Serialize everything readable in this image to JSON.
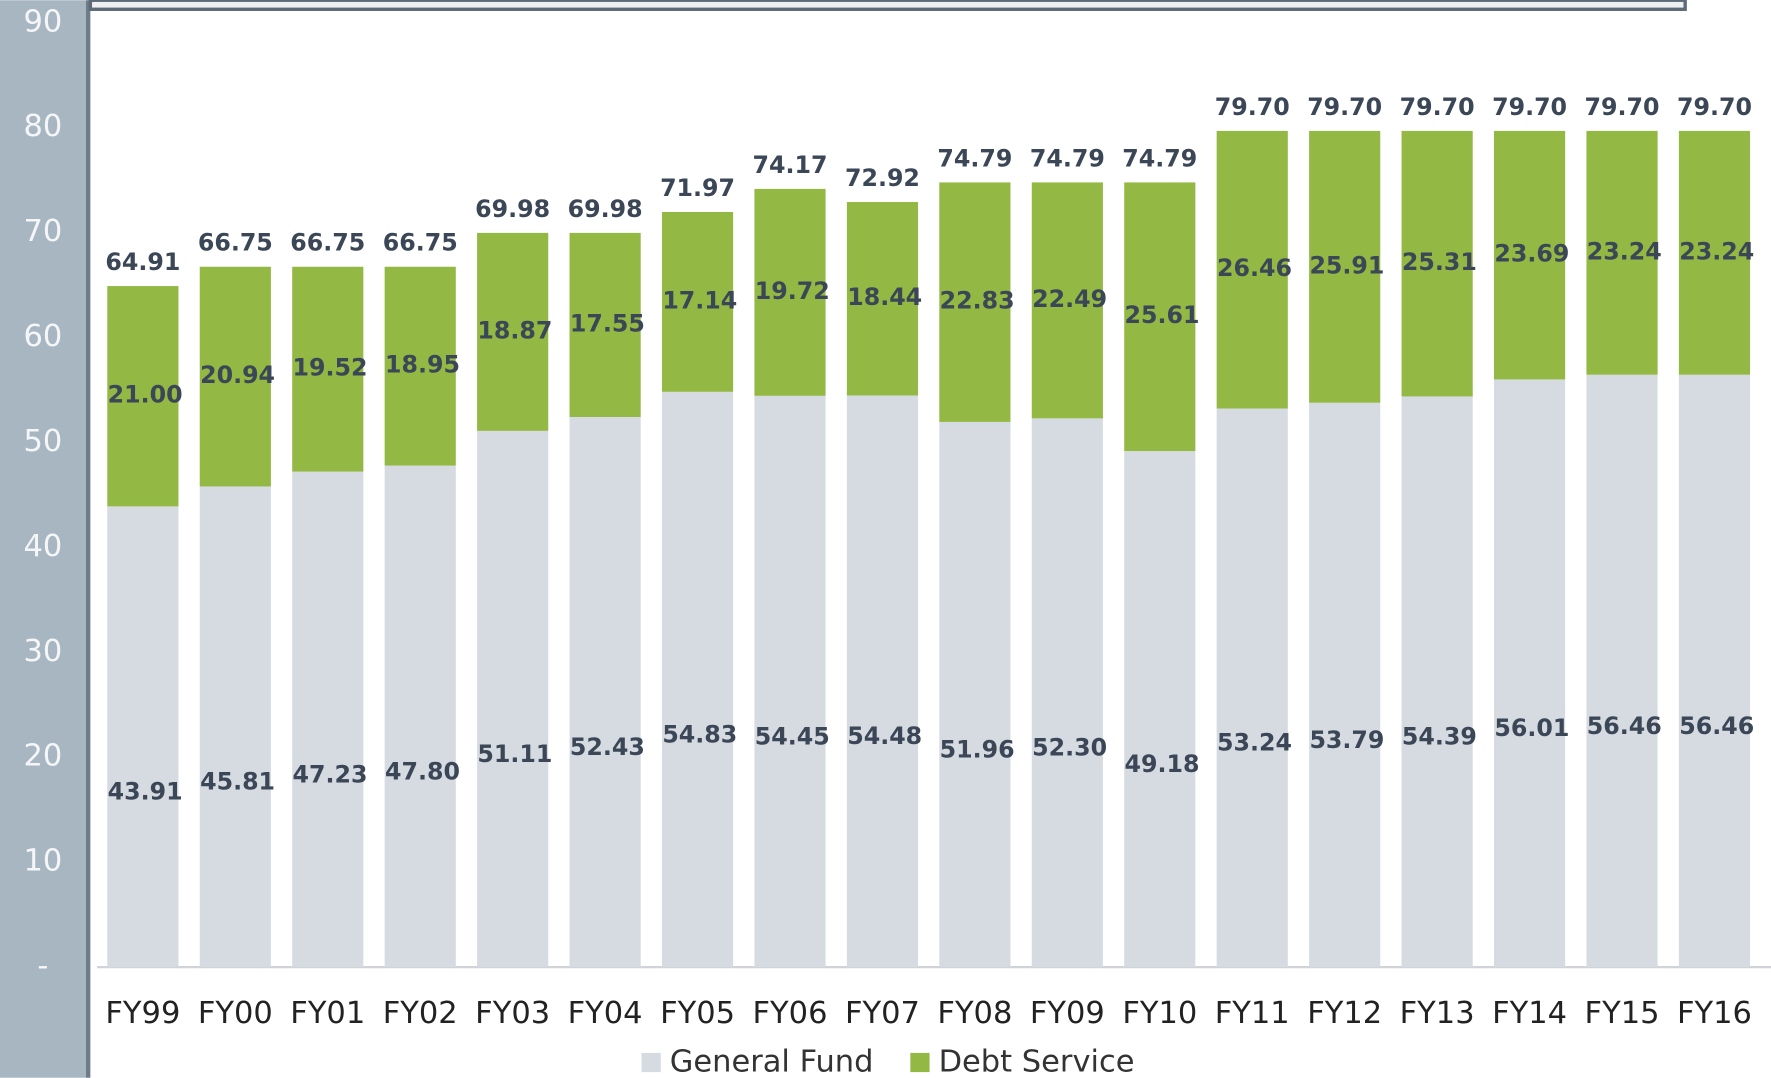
{
  "chart_data": {
    "type": "stacked_bar",
    "categories": [
      "FY99",
      "FY00",
      "FY01",
      "FY02",
      "FY03",
      "FY04",
      "FY05",
      "FY06",
      "FY07",
      "FY08",
      "FY09",
      "FY10",
      "FY11",
      "FY12",
      "FY13",
      "FY14",
      "FY15",
      "FY16"
    ],
    "series": [
      {
        "name": "General Fund",
        "color": "#d6dbe2",
        "values": [
          43.91,
          45.81,
          47.23,
          47.8,
          51.11,
          52.43,
          54.83,
          54.45,
          54.48,
          51.96,
          52.3,
          49.18,
          53.24,
          53.79,
          54.39,
          56.01,
          56.46,
          56.46
        ],
        "value_labels": [
          "43.91",
          "45.81",
          "47.23",
          "47.80",
          "51.11",
          "52.43",
          "54.83",
          "54.45",
          "54.48",
          "51.96",
          "52.30",
          "49.18",
          "53.24",
          "53.79",
          "54.39",
          "56.01",
          "56.46",
          "56.46"
        ]
      },
      {
        "name": "Debt Service",
        "color": "#93b844",
        "values": [
          21,
          20.94,
          19.52,
          18.95,
          18.87,
          17.55,
          17.14,
          19.72,
          18.44,
          22.83,
          22.49,
          25.61,
          26.46,
          25.91,
          25.31,
          23.69,
          23.24,
          23.24
        ],
        "value_labels": [
          "21.00",
          "20.94",
          "19.52",
          "18.95",
          "18.87",
          "17.55",
          "17.14",
          "19.72",
          "18.44",
          "22.83",
          "22.49",
          "25.61",
          "26.46",
          "25.91",
          "25.31",
          "23.69",
          "23.24",
          "23.24"
        ]
      }
    ],
    "totals": [
      64.91,
      66.75,
      66.75,
      66.75,
      69.98,
      69.98,
      71.97,
      74.17,
      72.92,
      74.79,
      74.79,
      74.79,
      79.7,
      79.7,
      79.7,
      79.7,
      79.7,
      79.7
    ],
    "total_labels": [
      "64.91",
      "66.75",
      "66.75",
      "66.75",
      "69.98",
      "69.98",
      "71.97",
      "74.17",
      "72.92",
      "74.79",
      "74.79",
      "74.79",
      "79.70",
      "79.70",
      "79.70",
      "79.70",
      "79.70",
      "79.70"
    ],
    "ylim": [
      0,
      90
    ],
    "yticks": [
      {
        "value": 0,
        "label": "-"
      },
      10,
      20,
      30,
      40,
      50,
      60,
      70,
      80,
      90
    ],
    "legend": "bottom"
  }
}
